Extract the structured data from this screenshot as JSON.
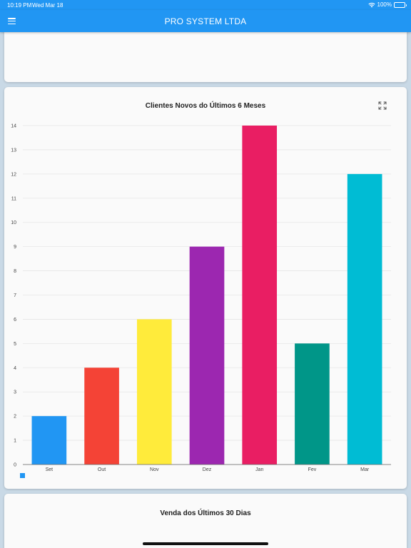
{
  "status_bar": {
    "time": "10:19 PM",
    "date": "Wed Mar 18",
    "battery": "100%"
  },
  "app_bar": {
    "title": "PRO SYSTEM LTDA",
    "menu_icon": "hamburger-menu-icon"
  },
  "chart_card": {
    "expand_icon": "expand-arrows-icon"
  },
  "bottom_card": {
    "title": "Venda dos Últimos 30 Dias"
  },
  "chart_data": {
    "type": "bar",
    "title": "Clientes Novos do Últimos 6 Meses",
    "categories": [
      "Set",
      "Out",
      "Nov",
      "Dez",
      "Jan",
      "Fev",
      "Mar"
    ],
    "values": [
      2,
      4,
      6,
      9,
      14,
      5,
      12
    ],
    "colors": [
      "#2196f3",
      "#f44336",
      "#ffeb3b",
      "#9c27b0",
      "#e91e63",
      "#009688",
      "#00bcd4"
    ],
    "ylim": [
      0,
      14
    ],
    "yticks": [
      "0",
      "1",
      "2",
      "3",
      "4",
      "5",
      "6",
      "7",
      "8",
      "9",
      "10",
      "11",
      "12",
      "13",
      "14"
    ],
    "grid": true,
    "legend": {
      "position": "bottom-left",
      "entries": [
        ""
      ],
      "color": "#2196f3"
    }
  }
}
